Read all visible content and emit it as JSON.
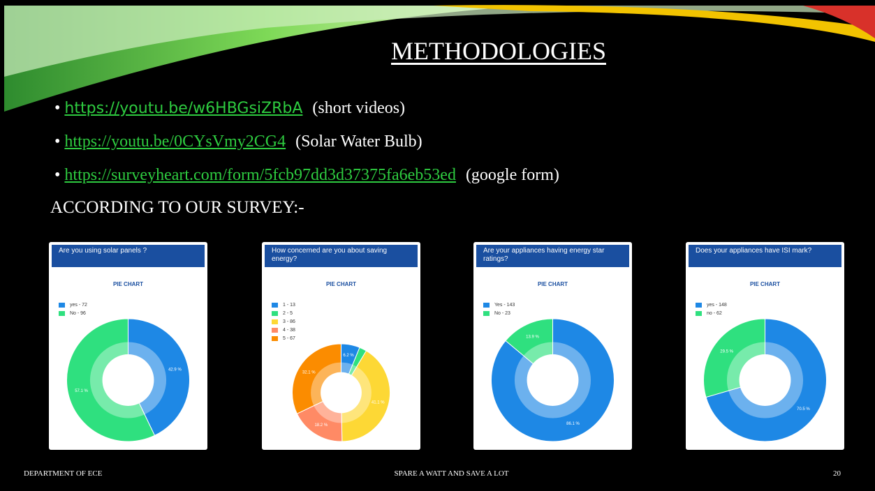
{
  "header": {
    "title": "METHODOLOGIES"
  },
  "bullets": [
    {
      "link": "https://youtu.be/w6HBGsiZRbA",
      "note": "(short videos)"
    },
    {
      "link": "https://youtu.be/0CYsVmy2CG4",
      "note": "(Solar Water Bulb)"
    },
    {
      "link": "https://surveyheart.com/form/5fcb97dd3d37375fa6eb53ed",
      "note": "(google form)"
    }
  ],
  "survey_heading": "ACCORDING TO OUR SURVEY:-",
  "chart_data": [
    {
      "type": "pie",
      "title": "Are you using solar panels ?",
      "subtitle": "PIE CHART",
      "categories": [
        "yes - 72",
        "No - 96"
      ],
      "values": [
        42.9,
        57.1
      ],
      "value_labels": [
        "42.9 %",
        "57.1 %"
      ],
      "colors": [
        "#1e88e5",
        "#2fe07f"
      ]
    },
    {
      "type": "pie",
      "title": "How concerned are you about saving energy?",
      "subtitle": "PIE CHART",
      "categories": [
        "1 - 13",
        "2 - 5",
        "3 - 86",
        "4 - 38",
        "5 - 67"
      ],
      "values": [
        6.2,
        2.4,
        41.1,
        18.2,
        32.1
      ],
      "value_labels": [
        "6.2 %",
        null,
        "41.1 %",
        "18.2 %",
        "32.1 %"
      ],
      "colors": [
        "#1e88e5",
        "#2fe07f",
        "#fdd835",
        "#ff8a65",
        "#fb8c00"
      ]
    },
    {
      "type": "pie",
      "title": "Are your appliances having energy star ratings?",
      "subtitle": "PIE CHART",
      "categories": [
        "Yes - 143",
        "No - 23"
      ],
      "values": [
        86.1,
        13.9
      ],
      "value_labels": [
        "86.1 %",
        "13.9 %"
      ],
      "colors": [
        "#1e88e5",
        "#2fe07f"
      ]
    },
    {
      "type": "pie",
      "title": "Does your appliances have ISI mark?",
      "subtitle": "PIE CHART",
      "categories": [
        "yes - 148",
        "no - 62"
      ],
      "values": [
        70.5,
        29.5
      ],
      "value_labels": [
        "70.5 %",
        "29.5 %"
      ],
      "colors": [
        "#1e88e5",
        "#2fe07f"
      ]
    }
  ],
  "footer": {
    "left": "DEPARTMENT OF ECE",
    "center": "SPARE A WATT AND SAVE A LOT",
    "page": 20
  }
}
